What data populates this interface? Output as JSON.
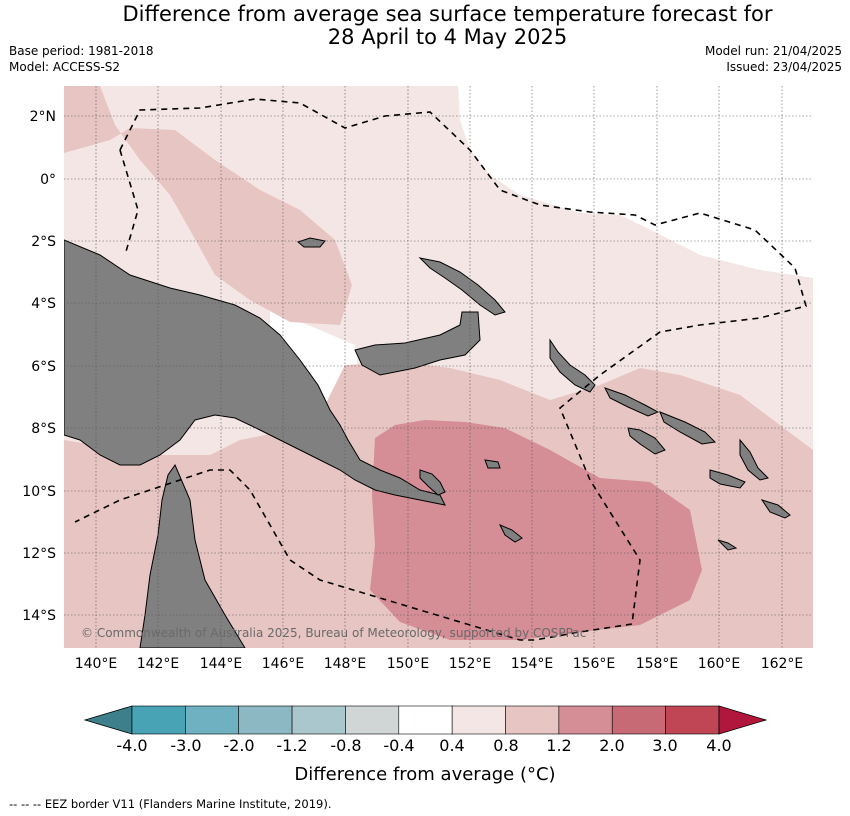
{
  "title_line1": "Difference from average sea surface temperature forecast for",
  "title_line2": "28 April to 4 May 2025",
  "base_period": "Base period: 1981-2018",
  "model": "Model: ACCESS-S2",
  "model_run": "Model run: 21/04/2025",
  "issued": "Issued: 23/04/2025",
  "copyright": "© Commonwealth of Australia 2025, Bureau of Meteorology, supported by COSPPac",
  "lat_labels": [
    "2°N",
    "0°",
    "2°S",
    "4°S",
    "6°S",
    "8°S",
    "10°S",
    "12°S",
    "14°S"
  ],
  "lon_labels": [
    "140°E",
    "142°E",
    "144°E",
    "146°E",
    "148°E",
    "150°E",
    "152°E",
    "154°E",
    "156°E",
    "158°E",
    "160°E",
    "162°E"
  ],
  "colorbar": {
    "ticks": [
      "-4.0",
      "-3.0",
      "-2.0",
      "-1.2",
      "-0.8",
      "-0.4",
      "0.4",
      "0.8",
      "1.2",
      "2.0",
      "3.0",
      "4.0"
    ],
    "colors": [
      "#3e7f8c",
      "#48a3b4",
      "#6fb0c1",
      "#8cb8c4",
      "#a9c7cc",
      "#d0d6d6",
      "#ffffff",
      "#f3e6e4",
      "#e7c5c2",
      "#d58d96",
      "#c86a76",
      "#c04555",
      "#b1173d"
    ],
    "title": "Difference from average (°C)"
  },
  "legend_text": "--  --  -- EEZ border V11 (Flanders Marine Institute, 2019)."
}
